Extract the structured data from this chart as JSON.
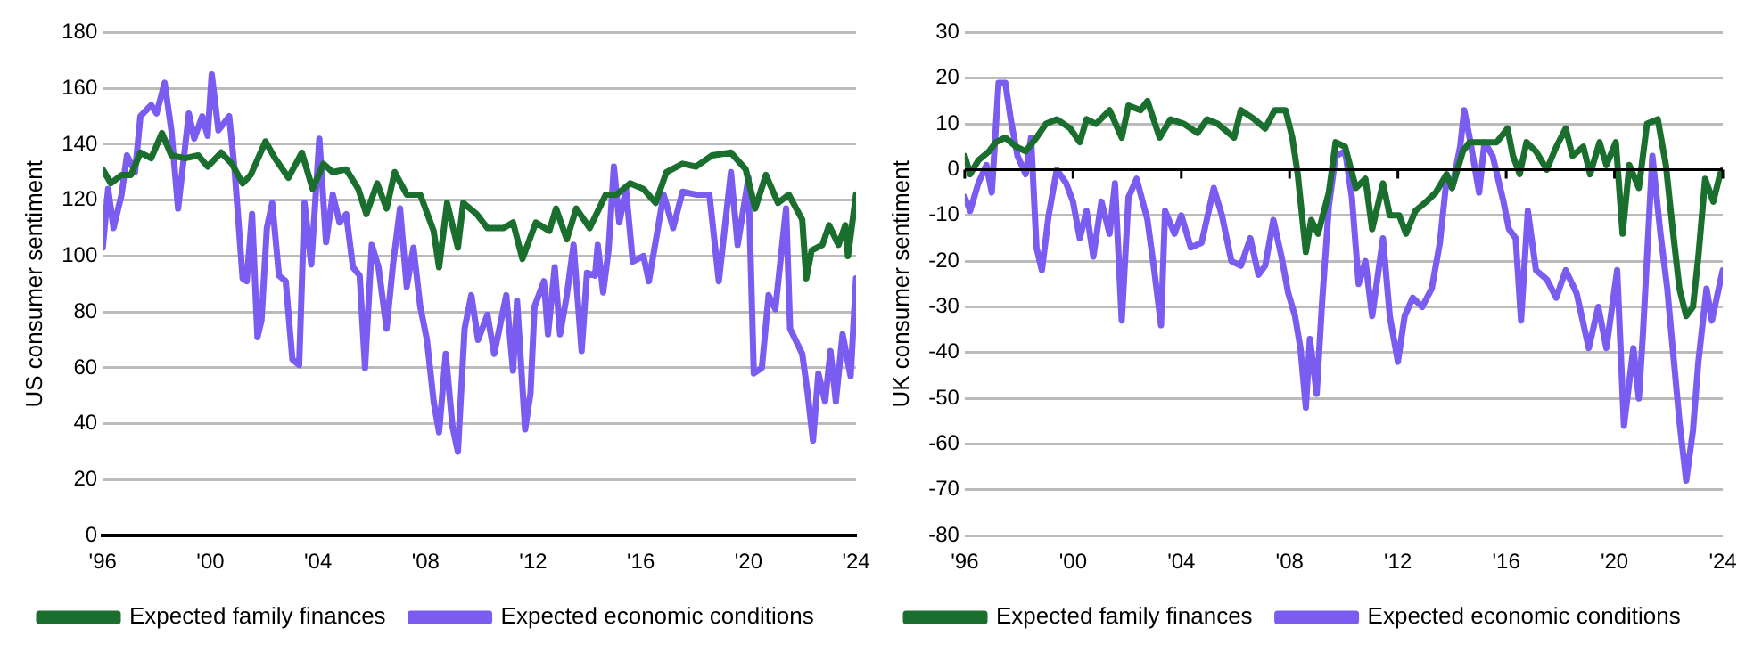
{
  "chart_data": [
    {
      "type": "line",
      "ylabel": "US consumer sentiment",
      "xlim": [
        1996,
        2024
      ],
      "xticks": [
        {
          "value": 1996,
          "label": "'96"
        },
        {
          "value": 2000,
          "label": "'00"
        },
        {
          "value": 2004,
          "label": "'04"
        },
        {
          "value": 2008,
          "label": "'08"
        },
        {
          "value": 2012,
          "label": "'12"
        },
        {
          "value": 2016,
          "label": "'16"
        },
        {
          "value": 2020,
          "label": "'20"
        },
        {
          "value": 2024,
          "label": "'24"
        }
      ],
      "ylim": [
        0,
        180
      ],
      "yticks": [
        0,
        20,
        40,
        60,
        80,
        100,
        120,
        140,
        160,
        180
      ],
      "grid": "y",
      "legend": "bottom",
      "series": [
        {
          "name": "Expected family finances",
          "color": "#1a6e2e",
          "x": [
            1996.0,
            1996.3,
            1996.7,
            1997.05,
            1997.4,
            1997.8,
            1998.2,
            1998.55,
            1999.05,
            1999.55,
            1999.9,
            2000.4,
            2000.8,
            2001.2,
            2001.5,
            2002.05,
            2002.4,
            2002.9,
            2003.4,
            2003.8,
            2004.2,
            2004.55,
            2005.05,
            2005.5,
            2005.8,
            2006.2,
            2006.55,
            2006.85,
            2007.3,
            2007.8,
            2008.3,
            2008.5,
            2008.8,
            2009.2,
            2009.4,
            2009.9,
            2010.3,
            2010.9,
            2011.25,
            2011.6,
            2012.1,
            2012.6,
            2012.85,
            2013.25,
            2013.6,
            2014.1,
            2014.7,
            2015.1,
            2015.6,
            2016.1,
            2016.55,
            2016.95,
            2017.55,
            2018.05,
            2018.65,
            2019.35,
            2019.9,
            2020.25,
            2020.65,
            2021.1,
            2021.5,
            2022.0,
            2022.15,
            2022.35,
            2022.75,
            2023.0,
            2023.35,
            2023.6,
            2023.7,
            2024.0
          ],
          "values": [
            131,
            126,
            129,
            129,
            137,
            135,
            144,
            136,
            135,
            136,
            132,
            137,
            133,
            126,
            129,
            141,
            135,
            128,
            137,
            124,
            133,
            130,
            131,
            124,
            115,
            126,
            117,
            130,
            122,
            122,
            109,
            96,
            119,
            103,
            119,
            115,
            110,
            110,
            112,
            99,
            112,
            109,
            117,
            106,
            117,
            110,
            122,
            122,
            126,
            124,
            119,
            130,
            133,
            132,
            136,
            137,
            131,
            117,
            129,
            119,
            122,
            113,
            92,
            102,
            104,
            111,
            104,
            111,
            100,
            122
          ]
        },
        {
          "name": "Expected economic conditions",
          "color": "#7b5cf0",
          "x": [
            1996.0,
            1996.2,
            1996.4,
            1996.7,
            1996.9,
            1997.2,
            1997.4,
            1997.8,
            1998.0,
            1998.3,
            1998.55,
            1998.8,
            1999.2,
            1999.4,
            1999.7,
            1999.9,
            2000.05,
            2000.3,
            2000.7,
            2000.9,
            2001.2,
            2001.35,
            2001.55,
            2001.75,
            2001.9,
            2002.1,
            2002.3,
            2002.55,
            2002.8,
            2003.05,
            2003.3,
            2003.5,
            2003.75,
            2004.05,
            2004.3,
            2004.55,
            2004.8,
            2005.05,
            2005.3,
            2005.55,
            2005.75,
            2006.0,
            2006.25,
            2006.55,
            2006.8,
            2007.05,
            2007.3,
            2007.55,
            2007.8,
            2008.05,
            2008.3,
            2008.5,
            2008.75,
            2009.0,
            2009.2,
            2009.45,
            2009.7,
            2009.95,
            2010.3,
            2010.55,
            2011.0,
            2011.25,
            2011.4,
            2011.7,
            2011.9,
            2012.05,
            2012.4,
            2012.55,
            2012.8,
            2013.0,
            2013.25,
            2013.5,
            2013.8,
            2014.0,
            2014.3,
            2014.4,
            2014.6,
            2014.8,
            2015.0,
            2015.2,
            2015.45,
            2015.7,
            2016.1,
            2016.3,
            2016.6,
            2016.85,
            2017.2,
            2017.55,
            2018.05,
            2018.55,
            2018.9,
            2019.35,
            2019.6,
            2020.0,
            2020.2,
            2020.5,
            2020.75,
            2021.0,
            2021.4,
            2021.55,
            2022.0,
            2022.2,
            2022.4,
            2022.6,
            2022.85,
            2023.05,
            2023.25,
            2023.5,
            2023.8,
            2024.0
          ],
          "values": [
            103,
            124,
            110,
            122,
            136,
            130,
            150,
            154,
            151,
            162,
            145,
            117,
            151,
            142,
            150,
            143,
            165,
            145,
            150,
            131,
            92,
            91,
            115,
            71,
            77,
            110,
            119,
            93,
            91,
            63,
            61,
            119,
            97,
            142,
            105,
            122,
            112,
            115,
            96,
            93,
            60,
            104,
            96,
            74,
            98,
            117,
            89,
            103,
            82,
            70,
            48,
            37,
            65,
            39,
            30,
            74,
            86,
            70,
            79,
            65,
            86,
            59,
            84,
            38,
            51,
            82,
            91,
            72,
            96,
            72,
            86,
            104,
            66,
            94,
            93,
            104,
            87,
            102,
            132,
            112,
            124,
            98,
            100,
            91,
            108,
            122,
            110,
            123,
            122,
            122,
            91,
            130,
            104,
            128,
            58,
            60,
            86,
            81,
            117,
            74,
            65,
            51,
            34,
            58,
            48,
            66,
            48,
            72,
            57,
            92
          ]
        }
      ]
    },
    {
      "type": "line",
      "ylabel": "UK consumer sentiment",
      "xlim": [
        1996,
        2024
      ],
      "xticks": [
        {
          "value": 1996,
          "label": "'96"
        },
        {
          "value": 2000,
          "label": "'00"
        },
        {
          "value": 2004,
          "label": "'04"
        },
        {
          "value": 2008,
          "label": "'08"
        },
        {
          "value": 2012,
          "label": "'12"
        },
        {
          "value": 2016,
          "label": "'16"
        },
        {
          "value": 2020,
          "label": "'20"
        },
        {
          "value": 2024,
          "label": "'24"
        }
      ],
      "ylim": [
        -80,
        30
      ],
      "yticks": [
        -80,
        -70,
        -60,
        -50,
        -40,
        -30,
        -20,
        -10,
        0,
        10,
        20,
        30
      ],
      "grid": "y",
      "legend": "bottom",
      "ref_lines": [
        {
          "axis": "y",
          "value": 0,
          "color": "#000000"
        }
      ],
      "series": [
        {
          "name": "Expected family finances",
          "color": "#1a6e2e",
          "x": [
            1996.0,
            1996.2,
            1996.5,
            1996.9,
            1997.15,
            1997.5,
            1997.9,
            1998.25,
            1998.65,
            1999.0,
            1999.4,
            1999.9,
            2000.25,
            2000.5,
            2000.85,
            2001.35,
            2001.8,
            2002.05,
            2002.5,
            2002.75,
            2003.2,
            2003.6,
            2004.1,
            2004.6,
            2004.95,
            2005.35,
            2005.95,
            2006.2,
            2006.7,
            2007.1,
            2007.45,
            2007.85,
            2008.1,
            2008.3,
            2008.6,
            2008.8,
            2009.05,
            2009.45,
            2009.7,
            2010.05,
            2010.45,
            2010.8,
            2011.05,
            2011.45,
            2011.7,
            2012.05,
            2012.3,
            2012.65,
            2013.05,
            2013.4,
            2013.8,
            2014.0,
            2014.4,
            2014.65,
            2015.15,
            2015.65,
            2016.05,
            2016.25,
            2016.5,
            2016.75,
            2017.1,
            2017.5,
            2017.85,
            2018.2,
            2018.45,
            2018.85,
            2019.1,
            2019.45,
            2019.7,
            2020.05,
            2020.3,
            2020.55,
            2020.9,
            2021.2,
            2021.6,
            2021.9,
            2022.15,
            2022.4,
            2022.65,
            2022.9,
            2023.1,
            2023.35,
            2023.65,
            2023.9,
            2024.0
          ],
          "values": [
            3,
            -1,
            2,
            4,
            6,
            7,
            5,
            4,
            7,
            10,
            11,
            9,
            6,
            11,
            10,
            13,
            7,
            14,
            13,
            15,
            7,
            11,
            10,
            8,
            11,
            10,
            7,
            13,
            11,
            9,
            13,
            13,
            7,
            -1,
            -18,
            -11,
            -14,
            -5,
            6,
            5,
            -4,
            -2,
            -13,
            -3,
            -10,
            -10,
            -14,
            -9,
            -7,
            -5,
            -1,
            -4,
            4,
            6,
            6,
            6,
            9,
            3,
            -1,
            6,
            4,
            0,
            5,
            9,
            3,
            5,
            -1,
            6,
            1,
            6,
            -14,
            1,
            -4,
            10,
            11,
            1,
            -13,
            -26,
            -32,
            -30,
            -19,
            -2,
            -7,
            -1,
            0
          ]
        },
        {
          "name": "Expected economic conditions",
          "color": "#7b5cf0",
          "x": [
            1996.0,
            1996.2,
            1996.5,
            1996.8,
            1997.0,
            1997.25,
            1997.5,
            1997.7,
            1997.95,
            1998.25,
            1998.45,
            1998.65,
            1998.85,
            1999.1,
            1999.4,
            1999.75,
            2000.0,
            2000.25,
            2000.5,
            2000.75,
            2001.05,
            2001.35,
            2001.55,
            2001.8,
            2002.05,
            2002.35,
            2002.75,
            2003.0,
            2003.25,
            2003.4,
            2003.75,
            2004.0,
            2004.35,
            2004.75,
            2005.2,
            2005.5,
            2005.85,
            2006.2,
            2006.55,
            2006.85,
            2007.1,
            2007.4,
            2007.7,
            2007.95,
            2008.2,
            2008.4,
            2008.6,
            2008.75,
            2009.0,
            2009.2,
            2009.45,
            2009.7,
            2010.05,
            2010.3,
            2010.55,
            2010.8,
            2011.05,
            2011.45,
            2011.7,
            2012.0,
            2012.25,
            2012.55,
            2012.9,
            2013.25,
            2013.55,
            2013.8,
            2014.0,
            2014.3,
            2014.45,
            2014.65,
            2015.0,
            2015.2,
            2015.5,
            2015.9,
            2016.1,
            2016.35,
            2016.55,
            2016.8,
            2017.1,
            2017.5,
            2017.85,
            2018.2,
            2018.6,
            2019.05,
            2019.4,
            2019.7,
            2020.1,
            2020.35,
            2020.7,
            2020.9,
            2021.05,
            2021.4,
            2021.7,
            2021.95,
            2022.15,
            2022.4,
            2022.65,
            2022.9,
            2023.1,
            2023.4,
            2023.6,
            2023.85,
            2024.0
          ],
          "values": [
            -6,
            -9,
            -3,
            1,
            -5,
            19,
            19,
            11,
            3,
            -1,
            7,
            -17,
            -22,
            -10,
            0,
            -3,
            -7,
            -15,
            -9,
            -19,
            -7,
            -14,
            -3,
            -33,
            -6,
            -2,
            -11,
            -22,
            -34,
            -9,
            -14,
            -10,
            -17,
            -16,
            -4,
            -10,
            -20,
            -21,
            -15,
            -23,
            -21,
            -11,
            -19,
            -27,
            -32,
            -39,
            -52,
            -37,
            -49,
            -29,
            -8,
            3,
            4,
            -6,
            -25,
            -20,
            -32,
            -15,
            -32,
            -42,
            -32,
            -28,
            -30,
            -26,
            -16,
            -2,
            -4,
            5,
            13,
            7,
            -5,
            6,
            3,
            -7,
            -13,
            -15,
            -33,
            -9,
            -22,
            -24,
            -28,
            -22,
            -27,
            -39,
            -30,
            -39,
            -22,
            -56,
            -39,
            -50,
            -36,
            3,
            -14,
            -26,
            -39,
            -55,
            -68,
            -57,
            -42,
            -26,
            -33,
            -26,
            -22
          ]
        }
      ]
    }
  ]
}
